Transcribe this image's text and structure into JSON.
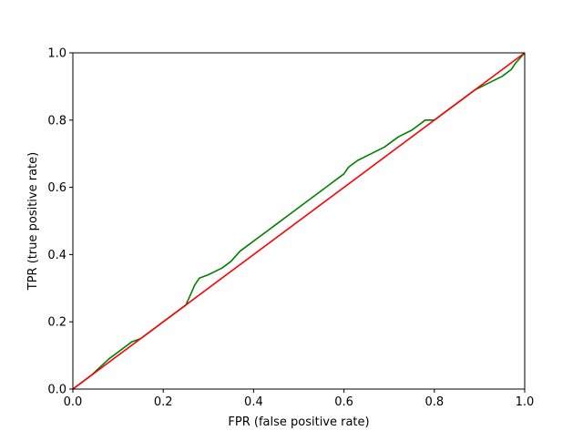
{
  "chart_data": {
    "type": "line",
    "title": "",
    "xlabel": "FPR (false positive rate)",
    "ylabel": "TPR (true positive rate)",
    "xlim": [
      0.0,
      1.0
    ],
    "ylim": [
      0.0,
      1.0
    ],
    "grid": false,
    "x_ticks": [
      "0.0",
      "0.2",
      "0.4",
      "0.6",
      "0.8",
      "1.0"
    ],
    "y_ticks": [
      "0.0",
      "0.2",
      "0.4",
      "0.6",
      "0.8",
      "1.0"
    ],
    "series": [
      {
        "color": "#008000",
        "points": [
          [
            0.0,
            0.0
          ],
          [
            0.04,
            0.04
          ],
          [
            0.08,
            0.09
          ],
          [
            0.11,
            0.12
          ],
          [
            0.13,
            0.14
          ],
          [
            0.15,
            0.15
          ],
          [
            0.17,
            0.17
          ],
          [
            0.19,
            0.19
          ],
          [
            0.21,
            0.21
          ],
          [
            0.23,
            0.23
          ],
          [
            0.25,
            0.25
          ],
          [
            0.26,
            0.28
          ],
          [
            0.27,
            0.31
          ],
          [
            0.28,
            0.33
          ],
          [
            0.3,
            0.34
          ],
          [
            0.33,
            0.36
          ],
          [
            0.35,
            0.38
          ],
          [
            0.37,
            0.41
          ],
          [
            0.39,
            0.43
          ],
          [
            0.41,
            0.45
          ],
          [
            0.43,
            0.47
          ],
          [
            0.45,
            0.49
          ],
          [
            0.48,
            0.52
          ],
          [
            0.51,
            0.55
          ],
          [
            0.54,
            0.58
          ],
          [
            0.57,
            0.61
          ],
          [
            0.6,
            0.64
          ],
          [
            0.61,
            0.66
          ],
          [
            0.63,
            0.68
          ],
          [
            0.66,
            0.7
          ],
          [
            0.69,
            0.72
          ],
          [
            0.72,
            0.75
          ],
          [
            0.75,
            0.77
          ],
          [
            0.78,
            0.8
          ],
          [
            0.8,
            0.8
          ],
          [
            0.81,
            0.81
          ],
          [
            0.83,
            0.83
          ],
          [
            0.86,
            0.86
          ],
          [
            0.89,
            0.89
          ],
          [
            0.92,
            0.91
          ],
          [
            0.95,
            0.93
          ],
          [
            0.97,
            0.95
          ],
          [
            0.98,
            0.97
          ],
          [
            1.0,
            1.0
          ]
        ]
      },
      {
        "color": "#ff0000",
        "points": [
          [
            0.0,
            0.0
          ],
          [
            1.0,
            1.0
          ]
        ]
      }
    ]
  }
}
